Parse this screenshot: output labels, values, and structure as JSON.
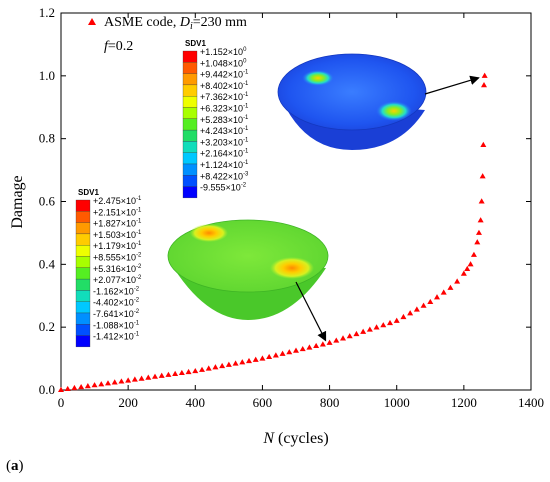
{
  "chart_data": {
    "type": "scatter",
    "title": "",
    "xlabel_var": "N",
    "xlabel_unit": " (cycles)",
    "ylabel": "Damage",
    "xlim": [
      0,
      1400
    ],
    "ylim": [
      0,
      1.2
    ],
    "xticks": [
      "0",
      "200",
      "400",
      "600",
      "800",
      "1000",
      "1200",
      "1400"
    ],
    "yticks": [
      "0.0",
      "0.2",
      "0.4",
      "0.6",
      "0.8",
      "1.0",
      "1.2"
    ],
    "grid": false,
    "legend": {
      "placement": "top-left",
      "prefix": "ASME code, ",
      "var": "D",
      "sub": "i",
      "suffix": "=230 mm",
      "note_var": "f",
      "note_val": "=0.2",
      "marker": "red-triangle",
      "color": "#ff0000"
    },
    "series": [
      {
        "marker": "triangle",
        "color": "#ff0000",
        "points": [
          [
            0,
            0.0
          ],
          [
            20,
            0.003
          ],
          [
            40,
            0.006
          ],
          [
            60,
            0.009
          ],
          [
            80,
            0.012
          ],
          [
            100,
            0.015
          ],
          [
            120,
            0.018
          ],
          [
            140,
            0.021
          ],
          [
            160,
            0.024
          ],
          [
            180,
            0.027
          ],
          [
            200,
            0.03
          ],
          [
            220,
            0.033
          ],
          [
            240,
            0.036
          ],
          [
            260,
            0.039
          ],
          [
            280,
            0.042
          ],
          [
            300,
            0.045
          ],
          [
            320,
            0.048
          ],
          [
            340,
            0.051
          ],
          [
            360,
            0.054
          ],
          [
            380,
            0.057
          ],
          [
            400,
            0.06
          ],
          [
            420,
            0.064
          ],
          [
            440,
            0.068
          ],
          [
            460,
            0.072
          ],
          [
            480,
            0.076
          ],
          [
            500,
            0.08
          ],
          [
            520,
            0.084
          ],
          [
            540,
            0.088
          ],
          [
            560,
            0.092
          ],
          [
            580,
            0.096
          ],
          [
            600,
            0.1
          ],
          [
            620,
            0.105
          ],
          [
            640,
            0.11
          ],
          [
            660,
            0.115
          ],
          [
            680,
            0.12
          ],
          [
            700,
            0.125
          ],
          [
            720,
            0.13
          ],
          [
            740,
            0.135
          ],
          [
            760,
            0.14
          ],
          [
            780,
            0.145
          ],
          [
            800,
            0.15
          ],
          [
            820,
            0.157
          ],
          [
            840,
            0.164
          ],
          [
            860,
            0.171
          ],
          [
            880,
            0.178
          ],
          [
            900,
            0.185
          ],
          [
            920,
            0.192
          ],
          [
            940,
            0.199
          ],
          [
            960,
            0.206
          ],
          [
            980,
            0.213
          ],
          [
            1000,
            0.22
          ],
          [
            1020,
            0.232
          ],
          [
            1040,
            0.244
          ],
          [
            1060,
            0.256
          ],
          [
            1080,
            0.268
          ],
          [
            1100,
            0.28
          ],
          [
            1120,
            0.295
          ],
          [
            1140,
            0.31
          ],
          [
            1160,
            0.325
          ],
          [
            1180,
            0.345
          ],
          [
            1200,
            0.37
          ],
          [
            1210,
            0.385
          ],
          [
            1220,
            0.4
          ],
          [
            1230,
            0.43
          ],
          [
            1240,
            0.47
          ],
          [
            1245,
            0.5
          ],
          [
            1250,
            0.54
          ],
          [
            1253,
            0.6
          ],
          [
            1256,
            0.68
          ],
          [
            1258,
            0.78
          ],
          [
            1260,
            0.97
          ],
          [
            1262,
            1.0
          ]
        ]
      }
    ],
    "annotations": [
      {
        "id": "inset-upper",
        "title": "SDV1",
        "labels": [
          [
            "+1.152",
            "0"
          ],
          [
            "+1.048",
            "0"
          ],
          [
            "+9.442",
            "-1"
          ],
          [
            "+8.402",
            "-1"
          ],
          [
            "+7.362",
            "-1"
          ],
          [
            "+6.323",
            "-1"
          ],
          [
            "+5.283",
            "-1"
          ],
          [
            "+4.243",
            "-1"
          ],
          [
            "+3.203",
            "-1"
          ],
          [
            "+2.164",
            "-1"
          ],
          [
            "+1.124",
            "-1"
          ],
          [
            "+8.422",
            "-3"
          ],
          [
            "-9.555",
            "-2"
          ]
        ],
        "colors": [
          "#ff0000",
          "#ff5a00",
          "#ff9a00",
          "#ffcc00",
          "#eeff00",
          "#a8ff00",
          "#55ee22",
          "#22dd66",
          "#11ddbb",
          "#00c8ff",
          "#0090ff",
          "#0050ff",
          "#0000ff"
        ],
        "points_to": [
          1262,
          1.0
        ]
      },
      {
        "id": "inset-lower",
        "title": "SDV1",
        "labels": [
          [
            "+2.475",
            "-1"
          ],
          [
            "+2.151",
            "-1"
          ],
          [
            "+1.827",
            "-1"
          ],
          [
            "+1.503",
            "-1"
          ],
          [
            "+1.179",
            "-1"
          ],
          [
            "+8.555",
            "-2"
          ],
          [
            "+5.316",
            "-2"
          ],
          [
            "+2.077",
            "-2"
          ],
          [
            "-1.162",
            "-2"
          ],
          [
            "-4.402",
            "-2"
          ],
          [
            "-7.641",
            "-2"
          ],
          [
            "-1.088",
            "-1"
          ],
          [
            "-1.412",
            "-1"
          ]
        ],
        "colors": [
          "#ff0000",
          "#ff5a00",
          "#ff9a00",
          "#ffcc00",
          "#eeff00",
          "#a8ff00",
          "#55ee22",
          "#22dd66",
          "#11ddbb",
          "#00c8ff",
          "#0090ff",
          "#0050ff",
          "#0000ff"
        ],
        "points_to": [
          800,
          0.145
        ]
      }
    ]
  },
  "panel_label": "a"
}
